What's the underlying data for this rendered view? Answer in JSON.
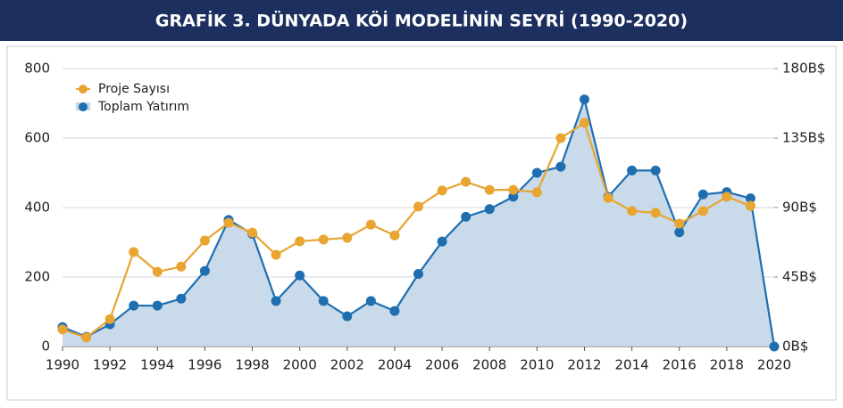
{
  "chart_data": {
    "type": "line",
    "title": "GRAFİK 3. DÜNYADA KÖİ MODELİNİN SEYRİ (1990-2020)",
    "x": [
      1990,
      1991,
      1992,
      1993,
      1994,
      1995,
      1996,
      1997,
      1998,
      1999,
      2000,
      2001,
      2002,
      2003,
      2004,
      2005,
      2006,
      2007,
      2008,
      2009,
      2010,
      2011,
      2012,
      2013,
      2014,
      2015,
      2016,
      2017,
      2018,
      2019,
      2020
    ],
    "xlim": [
      1990,
      2020
    ],
    "xticks": [
      1990,
      1992,
      1994,
      1996,
      1998,
      2000,
      2002,
      2004,
      2006,
      2008,
      2010,
      2012,
      2014,
      2016,
      2018,
      2020
    ],
    "ylim": [
      0,
      800
    ],
    "yticks": [
      0,
      200,
      400,
      600,
      800
    ],
    "y2lim": [
      0,
      180
    ],
    "y2ticks": [
      {
        "value": 0,
        "label": "0B$"
      },
      {
        "value": 45,
        "label": "45B$"
      },
      {
        "value": 90,
        "label": "90B$"
      },
      {
        "value": 135,
        "label": "135B$"
      },
      {
        "value": 180,
        "label": "180B$"
      }
    ],
    "grid": true,
    "legend": "upper left",
    "series": [
      {
        "name": "Proje Sayısı",
        "color": "#e8a531",
        "values": [
          49,
          26,
          79,
          272,
          215,
          230,
          305,
          356,
          328,
          264,
          303,
          308,
          313,
          351,
          320,
          403,
          449,
          474,
          451,
          451,
          444,
          600,
          644,
          428,
          390,
          385,
          354,
          390,
          431,
          405,
          null
        ]
      },
      {
        "name": "Toplam Yatırım",
        "color": "#1f6fb0",
        "area": true,
        "axis": "y2",
        "values": [
          12.6,
          6.3,
          14.4,
          26.5,
          26.5,
          31,
          49,
          82,
          73,
          29.5,
          46,
          29.5,
          19.6,
          29.5,
          23,
          47,
          68,
          84,
          89,
          97,
          112.5,
          116.5,
          160,
          97,
          114,
          114,
          74,
          98.5,
          100,
          96,
          0
        ]
      }
    ]
  }
}
